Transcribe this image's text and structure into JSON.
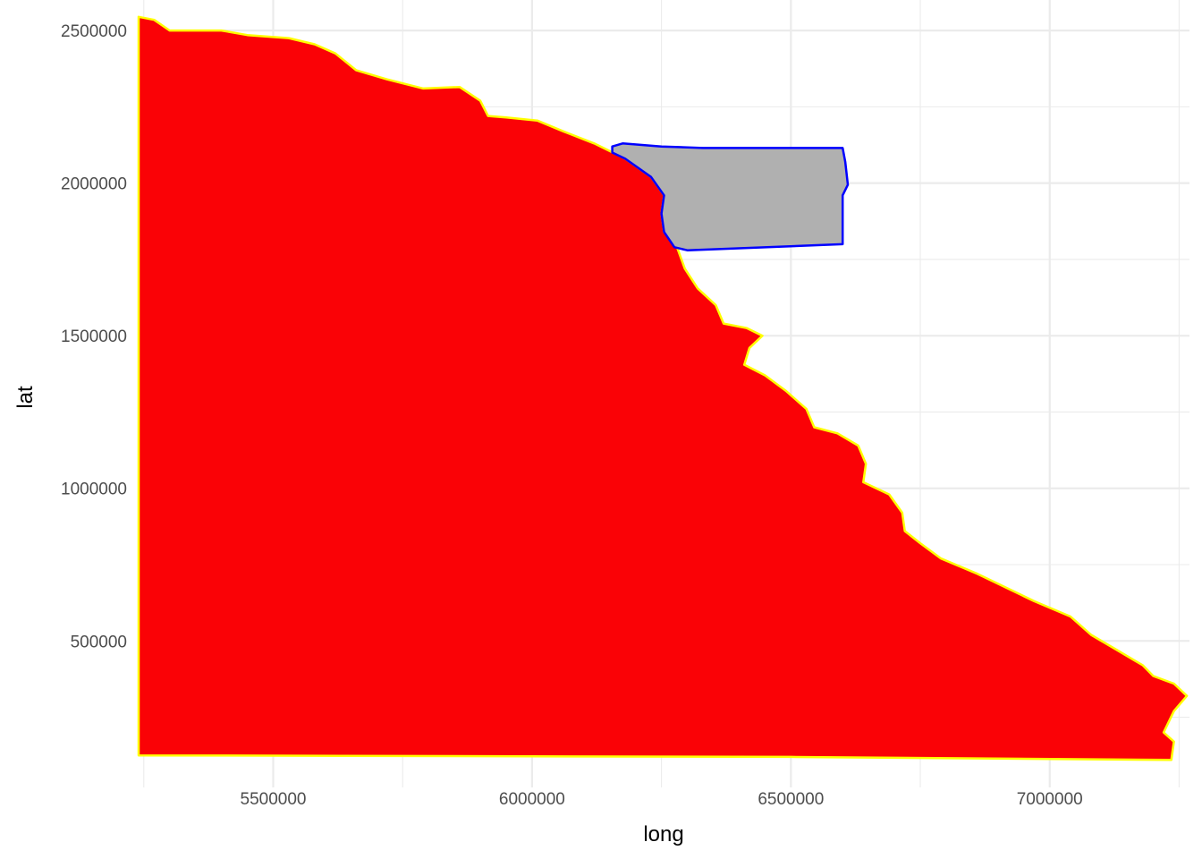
{
  "chart_data": {
    "type": "map",
    "xlabel": "long",
    "ylabel": "lat",
    "xlim": [
      5240000,
      7270000
    ],
    "ylim": [
      20000,
      2600000
    ],
    "x_ticks": [
      5500000,
      6000000,
      6500000,
      7000000
    ],
    "x_tick_labels": [
      "5500000",
      "6000000",
      "6500000",
      "7000000"
    ],
    "y_ticks": [
      500000,
      1000000,
      1500000,
      2000000,
      2500000
    ],
    "y_tick_labels": [
      "500000",
      "1000000",
      "1500000",
      "2000000",
      "2500000"
    ],
    "grid": true,
    "legend": "none",
    "polygons": [
      {
        "fill": "#fa0206",
        "stroke": "#ffff00",
        "points": [
          [
            5240000,
            2545000
          ],
          [
            5270000,
            2535000
          ],
          [
            5300000,
            2500000
          ],
          [
            5400000,
            2500000
          ],
          [
            5450000,
            2485000
          ],
          [
            5530000,
            2475000
          ],
          [
            5580000,
            2455000
          ],
          [
            5620000,
            2425000
          ],
          [
            5660000,
            2370000
          ],
          [
            5720000,
            2340000
          ],
          [
            5790000,
            2310000
          ],
          [
            5860000,
            2315000
          ],
          [
            5900000,
            2270000
          ],
          [
            5915000,
            2220000
          ],
          [
            5950000,
            2215000
          ],
          [
            6010000,
            2205000
          ],
          [
            6060000,
            2170000
          ],
          [
            6120000,
            2130000
          ],
          [
            6180000,
            2080000
          ],
          [
            6230000,
            2020000
          ],
          [
            6255000,
            1960000
          ],
          [
            6250000,
            1900000
          ],
          [
            6255000,
            1840000
          ],
          [
            6280000,
            1790000
          ],
          [
            6295000,
            1720000
          ],
          [
            6320000,
            1655000
          ],
          [
            6355000,
            1600000
          ],
          [
            6370000,
            1540000
          ],
          [
            6415000,
            1525000
          ],
          [
            6445000,
            1500000
          ],
          [
            6420000,
            1460000
          ],
          [
            6410000,
            1405000
          ],
          [
            6450000,
            1370000
          ],
          [
            6490000,
            1320000
          ],
          [
            6530000,
            1260000
          ],
          [
            6545000,
            1200000
          ],
          [
            6590000,
            1180000
          ],
          [
            6630000,
            1140000
          ],
          [
            6645000,
            1080000
          ],
          [
            6640000,
            1020000
          ],
          [
            6665000,
            1000000
          ],
          [
            6690000,
            980000
          ],
          [
            6715000,
            920000
          ],
          [
            6720000,
            860000
          ],
          [
            6750000,
            820000
          ],
          [
            6790000,
            770000
          ],
          [
            6860000,
            720000
          ],
          [
            6970000,
            630000
          ],
          [
            7040000,
            580000
          ],
          [
            7080000,
            520000
          ],
          [
            7130000,
            470000
          ],
          [
            7180000,
            420000
          ],
          [
            7200000,
            385000
          ],
          [
            7240000,
            360000
          ],
          [
            7265000,
            320000
          ],
          [
            7240000,
            270000
          ],
          [
            7220000,
            200000
          ],
          [
            7240000,
            170000
          ],
          [
            7235000,
            110000
          ],
          [
            6500000,
            120000
          ],
          [
            5240000,
            125000
          ]
        ]
      },
      {
        "fill": "#b0b0b0",
        "stroke": "#0000ff",
        "points": [
          [
            6155000,
            2120000
          ],
          [
            6175000,
            2130000
          ],
          [
            6250000,
            2120000
          ],
          [
            6330000,
            2115000
          ],
          [
            6600000,
            2115000
          ],
          [
            6605000,
            2070000
          ],
          [
            6610000,
            1995000
          ],
          [
            6600000,
            1960000
          ],
          [
            6600000,
            1880000
          ],
          [
            6600000,
            1800000
          ],
          [
            6300000,
            1780000
          ],
          [
            6275000,
            1790000
          ],
          [
            6255000,
            1840000
          ],
          [
            6250000,
            1900000
          ],
          [
            6255000,
            1960000
          ],
          [
            6230000,
            2020000
          ],
          [
            6180000,
            2080000
          ],
          [
            6155000,
            2100000
          ]
        ]
      }
    ]
  }
}
